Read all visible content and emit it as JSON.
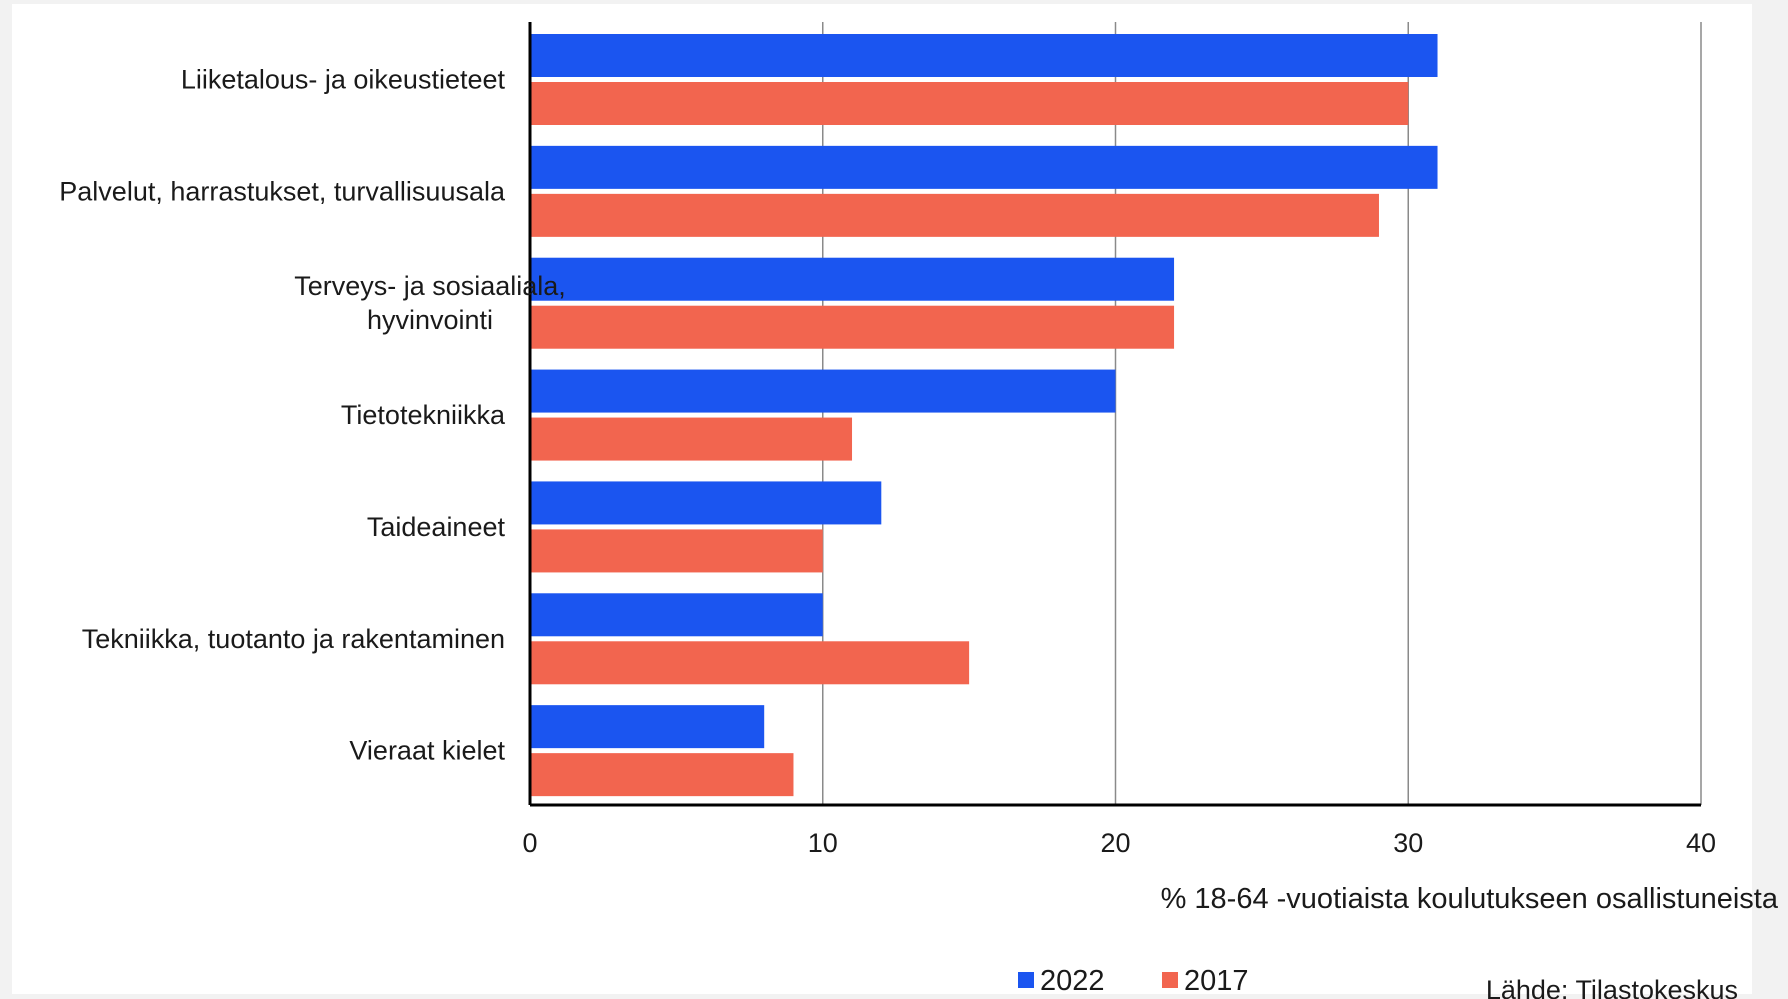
{
  "chart_data": {
    "type": "bar",
    "orientation": "horizontal",
    "categories": [
      [
        "Liiketalous- ja oikeustieteet"
      ],
      [
        "Palvelut, harrastukset, turvallisuusala"
      ],
      [
        "Terveys- ja sosiaaliala,",
        "hyvinvointi"
      ],
      [
        "Tietotekniikka"
      ],
      [
        "Taideaineet"
      ],
      [
        "Tekniikka, tuotanto ja rakentaminen"
      ],
      [
        "Vieraat kielet"
      ]
    ],
    "series": [
      {
        "name": "2022",
        "color": "#1b55f0",
        "values": [
          31,
          31,
          22,
          20,
          12,
          10,
          8
        ]
      },
      {
        "name": "2017",
        "color": "#f2654f",
        "values": [
          30,
          29,
          22,
          11,
          10,
          15,
          9
        ]
      }
    ],
    "xlim": [
      0,
      40
    ],
    "xticks": [
      0,
      10,
      20,
      30,
      40
    ],
    "xlabel": "% 18-64 -vuotiaista koulutukseen osallistuneista",
    "grid": "vertical",
    "legend": "bottom",
    "source": "Lähde: Tilastokeskus"
  }
}
